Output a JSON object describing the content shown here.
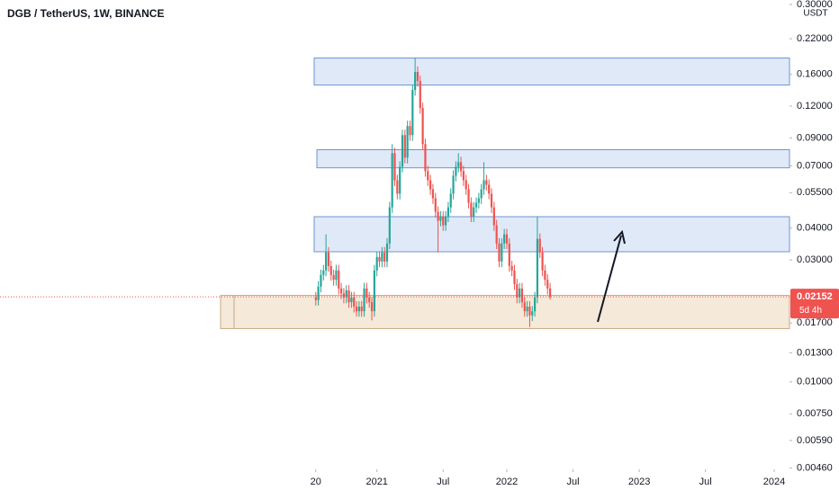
{
  "chart_data": {
    "type": "candlestick",
    "title": "DGB / TetherUS, 1W, BINANCE",
    "axis_unit": "USDT",
    "log_scale": true,
    "up_color": "#26a69a",
    "down_color": "#ef5350",
    "x": [
      0,
      1,
      2,
      3,
      4,
      5,
      6,
      7,
      8,
      9,
      10,
      11,
      12,
      13,
      14,
      15,
      16,
      17,
      18,
      19,
      20,
      21,
      22,
      23,
      24,
      25,
      26,
      27,
      28,
      29,
      30,
      31,
      32,
      33,
      34,
      35,
      36,
      37,
      38,
      39,
      40,
      41,
      42,
      43,
      44,
      45,
      46,
      47,
      48,
      49,
      50,
      51,
      52,
      53,
      54,
      55,
      56,
      57,
      58,
      59,
      60,
      61,
      62,
      63,
      64,
      65,
      66,
      67,
      68,
      69,
      70,
      71,
      72,
      73,
      74,
      75,
      76,
      77,
      78,
      79,
      80,
      81,
      82,
      83,
      84,
      85,
      86,
      87,
      88,
      89,
      90,
      91,
      92
    ],
    "open": [
      0.0214,
      0.0209,
      0.0236,
      0.0262,
      0.0273,
      0.0321,
      0.0284,
      0.0262,
      0.0251,
      0.0273,
      0.0232,
      0.0222,
      0.0214,
      0.0228,
      0.0205,
      0.0214,
      0.0197,
      0.0189,
      0.0197,
      0.0189,
      0.0232,
      0.0214,
      0.0205,
      0.0189,
      0.0273,
      0.0308,
      0.0296,
      0.0321,
      0.0296,
      0.0348,
      0.0482,
      0.0785,
      0.0615,
      0.0545,
      0.0695,
      0.0924,
      0.0754,
      0.1002,
      0.0924,
      0.1387,
      0.1632,
      0.1504,
      0.1179,
      0.0852,
      0.0668,
      0.0615,
      0.0567,
      0.0523,
      0.0463,
      0.0427,
      0.0444,
      0.041,
      0.0444,
      0.0482,
      0.0545,
      0.0641,
      0.0695,
      0.0724,
      0.0668,
      0.0615,
      0.0567,
      0.0502,
      0.0444,
      0.0482,
      0.0502,
      0.0523,
      0.0567,
      0.0615,
      0.0591,
      0.0545,
      0.0482,
      0.041,
      0.0348,
      0.0296,
      0.0348,
      0.0378,
      0.0348,
      0.0284,
      0.0273,
      0.0241,
      0.0214,
      0.0232,
      0.0205,
      0.0189,
      0.0197,
      0.0182,
      0.0189,
      0.0214,
      0.0363,
      0.0321,
      0.0273,
      0.0251,
      0.0232
    ],
    "high": [
      0.0225,
      0.0248,
      0.0275,
      0.0287,
      0.0378,
      0.0337,
      0.0298,
      0.0275,
      0.0287,
      0.0287,
      0.0244,
      0.0233,
      0.0239,
      0.0239,
      0.0225,
      0.0225,
      0.0207,
      0.0207,
      0.0207,
      0.0244,
      0.0244,
      0.0225,
      0.0215,
      0.0287,
      0.0323,
      0.0323,
      0.0337,
      0.0337,
      0.0365,
      0.0506,
      0.0852,
      0.0824,
      0.0646,
      0.073,
      0.097,
      0.097,
      0.1052,
      0.1052,
      0.1456,
      0.1843,
      0.1714,
      0.1579,
      0.1238,
      0.0895,
      0.0701,
      0.0646,
      0.0595,
      0.0549,
      0.0486,
      0.0466,
      0.0466,
      0.0466,
      0.0506,
      0.0572,
      0.0673,
      0.073,
      0.0785,
      0.076,
      0.0701,
      0.0646,
      0.0595,
      0.0527,
      0.0506,
      0.0527,
      0.0549,
      0.0595,
      0.0724,
      0.0646,
      0.062,
      0.0572,
      0.0506,
      0.0431,
      0.0365,
      0.0365,
      0.0397,
      0.0397,
      0.0365,
      0.0298,
      0.0287,
      0.0253,
      0.0244,
      0.0244,
      0.0215,
      0.0207,
      0.0207,
      0.0198,
      0.0225,
      0.0444,
      0.0381,
      0.0337,
      0.0287,
      0.0264,
      0.0244
    ],
    "low": [
      0.0199,
      0.0199,
      0.0224,
      0.0249,
      0.0259,
      0.027,
      0.0249,
      0.0238,
      0.0238,
      0.022,
      0.0211,
      0.0203,
      0.0203,
      0.0195,
      0.0195,
      0.0187,
      0.018,
      0.018,
      0.018,
      0.018,
      0.0203,
      0.0195,
      0.0174,
      0.018,
      0.0259,
      0.0281,
      0.0281,
      0.0281,
      0.0281,
      0.0331,
      0.0458,
      0.0584,
      0.0518,
      0.0518,
      0.066,
      0.0716,
      0.0716,
      0.0878,
      0.0878,
      0.1318,
      0.1429,
      0.112,
      0.0809,
      0.0635,
      0.0584,
      0.0539,
      0.0497,
      0.044,
      0.0321,
      0.0406,
      0.039,
      0.039,
      0.0422,
      0.0458,
      0.0518,
      0.0609,
      0.066,
      0.0635,
      0.0584,
      0.0539,
      0.0477,
      0.0422,
      0.0422,
      0.0458,
      0.0477,
      0.0497,
      0.0539,
      0.0561,
      0.0518,
      0.0458,
      0.039,
      0.0331,
      0.0281,
      0.0281,
      0.0331,
      0.0331,
      0.027,
      0.0259,
      0.0229,
      0.0203,
      0.0203,
      0.0195,
      0.018,
      0.018,
      0.0164,
      0.0173,
      0.018,
      0.0203,
      0.0305,
      0.0259,
      0.0238,
      0.022,
      0.021
    ],
    "close": [
      0.0209,
      0.0236,
      0.0262,
      0.0273,
      0.0321,
      0.0284,
      0.0262,
      0.0251,
      0.0273,
      0.0232,
      0.0222,
      0.0214,
      0.0228,
      0.0205,
      0.0214,
      0.0197,
      0.0189,
      0.0197,
      0.0189,
      0.0232,
      0.0214,
      0.0205,
      0.0189,
      0.0273,
      0.0308,
      0.0296,
      0.0321,
      0.0296,
      0.0348,
      0.0482,
      0.0785,
      0.0615,
      0.0545,
      0.0695,
      0.0924,
      0.0754,
      0.1002,
      0.0924,
      0.1387,
      0.1632,
      0.1504,
      0.1179,
      0.0852,
      0.0668,
      0.0615,
      0.0567,
      0.0523,
      0.0463,
      0.0427,
      0.0444,
      0.041,
      0.0444,
      0.0482,
      0.0545,
      0.0641,
      0.0695,
      0.0724,
      0.0668,
      0.0615,
      0.0567,
      0.0502,
      0.0444,
      0.0482,
      0.0502,
      0.0523,
      0.0567,
      0.0615,
      0.0591,
      0.0545,
      0.0482,
      0.041,
      0.0348,
      0.0296,
      0.0348,
      0.0378,
      0.0348,
      0.0284,
      0.0273,
      0.0241,
      0.0214,
      0.0232,
      0.0205,
      0.0189,
      0.0197,
      0.0182,
      0.0189,
      0.0214,
      0.0363,
      0.0321,
      0.0273,
      0.0251,
      0.0232,
      0.0215
    ],
    "xlim": [
      -124,
      186
    ],
    "xticks": [
      {
        "value": 0,
        "label": "20"
      },
      {
        "value": 24,
        "label": "2021"
      },
      {
        "value": 50,
        "label": "Jul"
      },
      {
        "value": 75,
        "label": "2022"
      },
      {
        "value": 101,
        "label": "Jul"
      },
      {
        "value": 127,
        "label": "2023"
      },
      {
        "value": 153,
        "label": "Jul"
      },
      {
        "value": 180,
        "label": "2024"
      }
    ],
    "ylim": [
      0.00455,
      0.312
    ],
    "yticks": [
      {
        "value": 0.3,
        "label": "0.30000"
      },
      {
        "value": 0.22,
        "label": "0.22000"
      },
      {
        "value": 0.16,
        "label": "0.16000"
      },
      {
        "value": 0.12,
        "label": "0.12000"
      },
      {
        "value": 0.09,
        "label": "0.09000"
      },
      {
        "value": 0.07,
        "label": "0.07000"
      },
      {
        "value": 0.055,
        "label": "0.05500"
      },
      {
        "value": 0.04,
        "label": "0.04000"
      },
      {
        "value": 0.03,
        "label": "0.03000"
      },
      {
        "value": 0.017,
        "label": "0.01700"
      },
      {
        "value": 0.013,
        "label": "0.01300"
      },
      {
        "value": 0.01,
        "label": "0.01000"
      },
      {
        "value": 0.0075,
        "label": "0.00750"
      },
      {
        "value": 0.0059,
        "label": "0.00590"
      },
      {
        "value": 0.0046,
        "label": "0.00460"
      }
    ],
    "zones": [
      {
        "top": 0.185,
        "bottom": 0.145,
        "color": "#d6e2f5"
      },
      {
        "top": 0.081,
        "bottom": 0.0688,
        "color": "#d6e2f5"
      },
      {
        "top": 0.0443,
        "bottom": 0.0323,
        "color": "#d6e2f5"
      },
      {
        "top": 0.0218,
        "bottom": 0.01617,
        "color": "#f2e2cc"
      }
    ],
    "last_price": 0.02152,
    "countdown": "5d 4h"
  }
}
